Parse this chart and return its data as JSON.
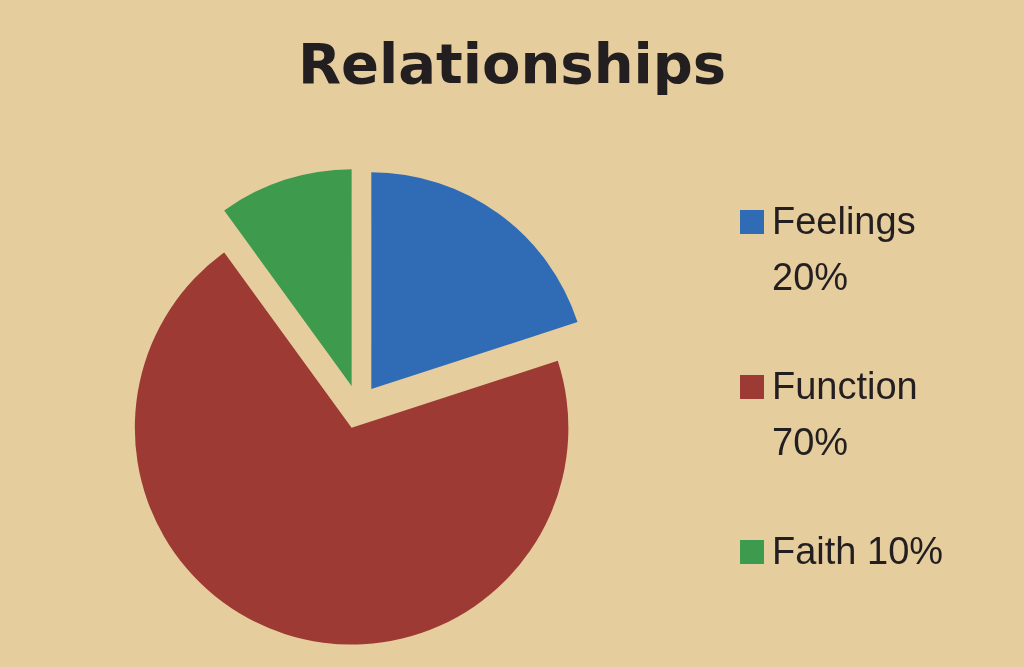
{
  "chart_data": {
    "type": "pie",
    "title": "Relationships",
    "categories": [
      "Feelings",
      "Function",
      "Faith"
    ],
    "values": [
      20,
      70,
      10
    ],
    "value_labels": [
      "20%",
      "70%",
      "10%"
    ],
    "colors": [
      "#2f6cb5",
      "#9c3a33",
      "#3e9a4c"
    ],
    "legend": "right"
  }
}
